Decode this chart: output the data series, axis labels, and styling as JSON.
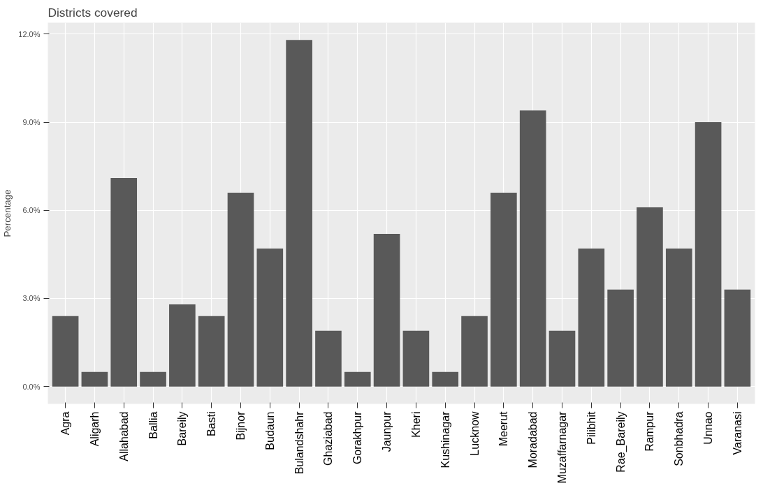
{
  "chart_data": {
    "type": "bar",
    "title": "Districts covered",
    "ylabel": "Percentage",
    "categories": [
      "Agra",
      "Aligarh",
      "Allahabad",
      "Ballia",
      "Bareily",
      "Basti",
      "Bijnor",
      "Budaun",
      "Bulandshahr",
      "Ghaziabad",
      "Gorakhpur",
      "Jaunpur",
      "Kheri",
      "Kushinagar",
      "Lucknow",
      "Meerut",
      "Moradabad",
      "Muzaffarnagar",
      "Pilibhit",
      "Rae_Bareily",
      "Rampur",
      "Sonbhadra",
      "Unnao",
      "Varanasi"
    ],
    "values": [
      2.4,
      0.5,
      7.1,
      0.5,
      2.8,
      2.4,
      6.6,
      4.7,
      11.8,
      1.9,
      0.5,
      5.2,
      1.9,
      0.5,
      2.4,
      6.6,
      9.4,
      1.9,
      4.7,
      3.3,
      6.1,
      4.7,
      9.0,
      3.3
    ],
    "color": "#595959",
    "ylim": [
      -0.59,
      12.39
    ],
    "yticks": [
      {
        "value": 0,
        "label": "0.0%"
      },
      {
        "value": 3,
        "label": "3.0%"
      },
      {
        "value": 6,
        "label": "6.0%"
      },
      {
        "value": 9,
        "label": "9.0%"
      },
      {
        "value": 12,
        "label": "12.0%"
      }
    ],
    "grid": true
  }
}
